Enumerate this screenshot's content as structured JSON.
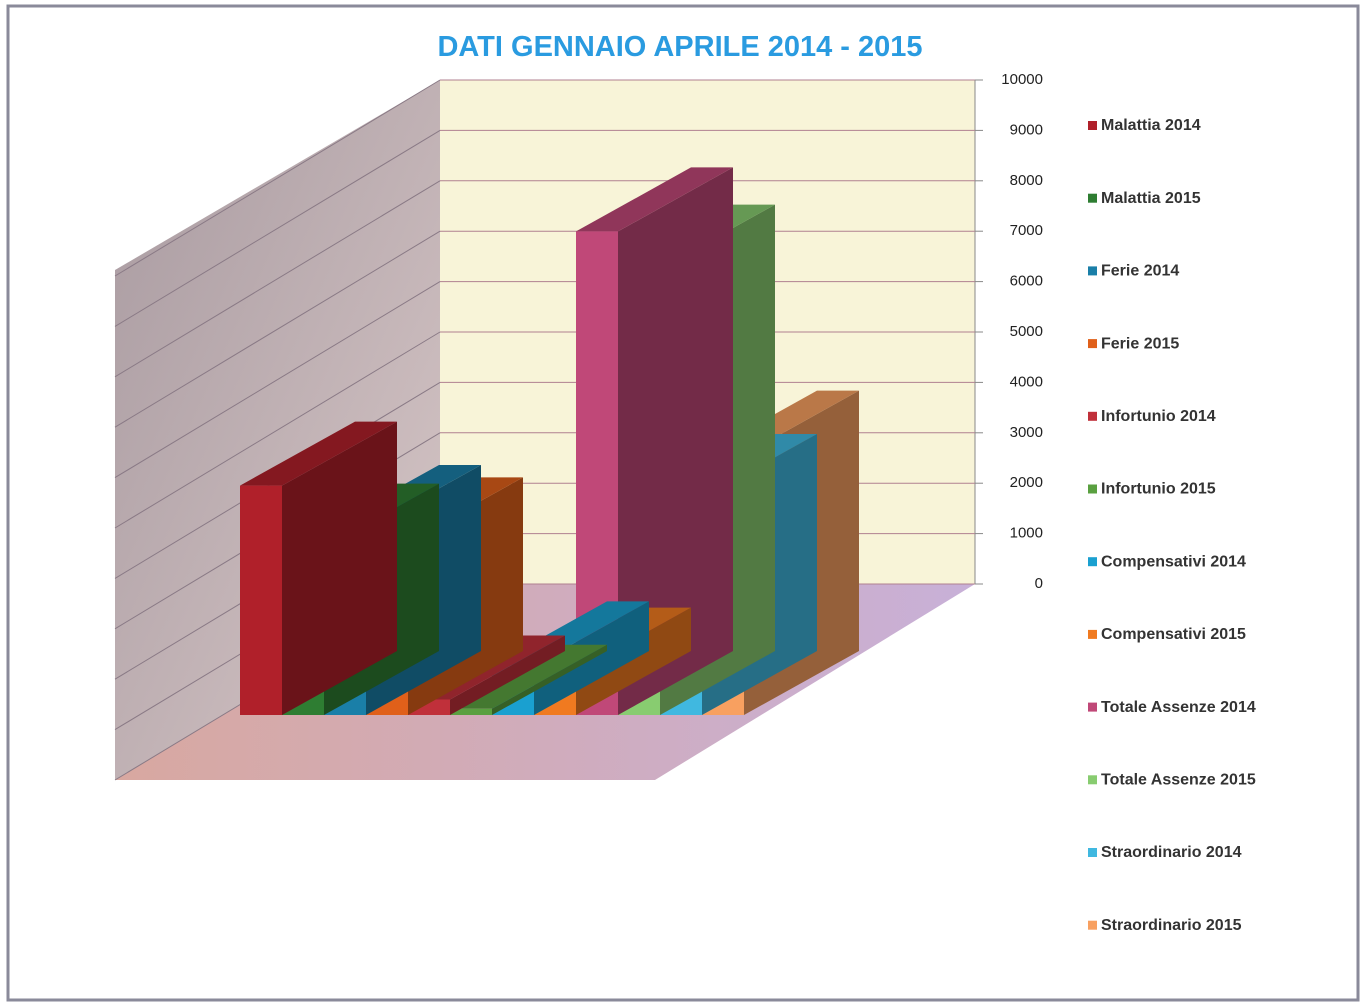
{
  "chart_data": {
    "type": "bar3d",
    "title": "DATI GENNAIO APRILE 2014 - 2015",
    "ylim": [
      0,
      10000
    ],
    "yticks": [
      0,
      1000,
      2000,
      3000,
      4000,
      5000,
      6000,
      7000,
      8000,
      9000,
      10000
    ],
    "grid": true,
    "series": [
      {
        "name": "Malattia 2014",
        "color": "#b0202a",
        "values": [
          3700
        ]
      },
      {
        "name": "Malattia 2015",
        "color": "#2e7d32",
        "values": [
          2700
        ]
      },
      {
        "name": "Ferie 2014",
        "color": "#1a7fa8",
        "values": [
          3000
        ]
      },
      {
        "name": "Ferie 2015",
        "color": "#e0601a",
        "values": [
          2800
        ]
      },
      {
        "name": "Infortunio 2014",
        "color": "#c0303a",
        "values": [
          250
        ]
      },
      {
        "name": "Infortunio 2015",
        "color": "#5aa040",
        "values": [
          100
        ]
      },
      {
        "name": "Compensativi 2014",
        "color": "#1aa0d0",
        "values": [
          800
        ]
      },
      {
        "name": "Compensativi 2015",
        "color": "#f07a20",
        "values": [
          700
        ]
      },
      {
        "name": "Totale Assenze 2014",
        "color": "#c04878",
        "values": [
          7800
        ]
      },
      {
        "name": "Totale Assenze 2015",
        "color": "#88cc70",
        "values": [
          7200
        ]
      },
      {
        "name": "Straordinario 2014",
        "color": "#40b8e0",
        "values": [
          3500
        ]
      },
      {
        "name": "Straordinario 2015",
        "color": "#f8a060",
        "values": [
          4200
        ]
      }
    ]
  }
}
